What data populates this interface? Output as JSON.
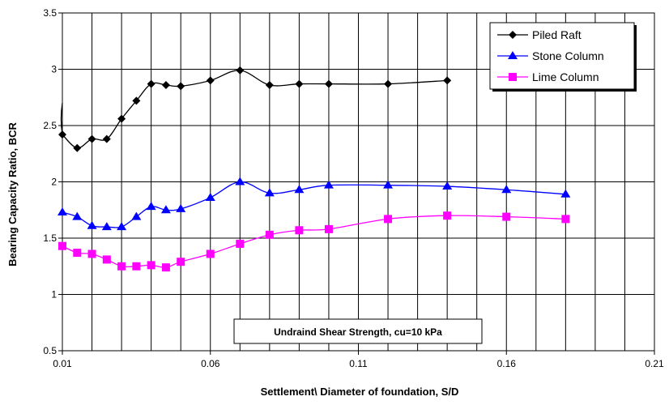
{
  "chart_data": {
    "type": "line",
    "xlabel": "Settlement\\ Diameter of foundation, S/D",
    "ylabel": "Bearing Capacity Ratio, BCR",
    "xlim": [
      0.01,
      0.21
    ],
    "ylim": [
      0.5,
      3.5
    ],
    "xticks": [
      0.01,
      0.06,
      0.11,
      0.16,
      0.21
    ],
    "yticks": [
      0.5,
      1,
      1.5,
      2,
      2.5,
      3,
      3.5
    ],
    "x_minor_step": 0.01,
    "grid": true,
    "legend_position": "top-right",
    "annotation": "Undraind Shear Strength, cu=10 kPa",
    "series": [
      {
        "name": "Piled Raft",
        "color": "#000000",
        "marker": "diamond",
        "x": [
          0.01,
          0.015,
          0.02,
          0.025,
          0.03,
          0.035,
          0.04,
          0.045,
          0.05,
          0.06,
          0.07,
          0.08,
          0.09,
          0.1,
          0.12,
          0.14
        ],
        "y": [
          2.42,
          2.3,
          2.38,
          2.38,
          2.56,
          2.72,
          2.87,
          2.86,
          2.85,
          2.9,
          2.99,
          2.86,
          2.87,
          2.87,
          2.87,
          2.9
        ],
        "lead_in": [
          0.01,
          2.7
        ]
      },
      {
        "name": "Stone Column",
        "color": "#0000ff",
        "marker": "triangle",
        "x": [
          0.01,
          0.015,
          0.02,
          0.025,
          0.03,
          0.035,
          0.04,
          0.045,
          0.05,
          0.06,
          0.07,
          0.08,
          0.09,
          0.1,
          0.12,
          0.14,
          0.16,
          0.18
        ],
        "y": [
          1.73,
          1.69,
          1.61,
          1.6,
          1.6,
          1.69,
          1.78,
          1.75,
          1.76,
          1.86,
          2.0,
          1.9,
          1.93,
          1.97,
          1.97,
          1.96,
          1.93,
          1.89
        ]
      },
      {
        "name": "Lime Column",
        "color": "#ff00ff",
        "marker": "square",
        "x": [
          0.01,
          0.015,
          0.02,
          0.025,
          0.03,
          0.035,
          0.04,
          0.045,
          0.05,
          0.06,
          0.07,
          0.08,
          0.09,
          0.1,
          0.12,
          0.14,
          0.16,
          0.18
        ],
        "y": [
          1.43,
          1.37,
          1.36,
          1.31,
          1.25,
          1.25,
          1.26,
          1.24,
          1.29,
          1.36,
          1.45,
          1.53,
          1.57,
          1.58,
          1.67,
          1.7,
          1.69,
          1.67
        ]
      }
    ]
  }
}
